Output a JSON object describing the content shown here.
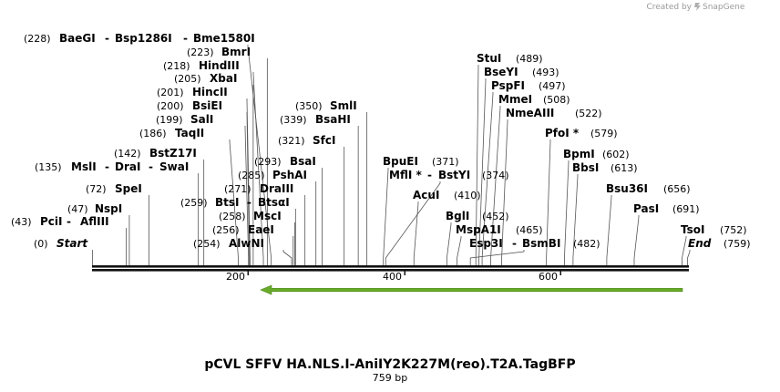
{
  "credit": {
    "prefix": "Created by",
    "brand": "SnapGene"
  },
  "plasmid": {
    "name": "pCVL SFFV HA.NLS.I-AniIY2K227M(reo).T2A.TagBFP",
    "length_label": "759 bp",
    "length": 759
  },
  "ruler": {
    "ticks": [
      "200",
      "400",
      "600"
    ]
  },
  "feature": {
    "name": "forward-arrow-feature",
    "color": "#6aaa2a",
    "start": 216,
    "end": 759,
    "direction": "reverse"
  },
  "sites": [
    {
      "id": "start",
      "pos_label": "(0)",
      "names": [
        "Start"
      ],
      "italic": true,
      "cut": 0
    },
    {
      "id": "pci-aflIII",
      "pos_label": "(43)",
      "names": [
        "PciI",
        "AflIII"
      ],
      "cut": 43
    },
    {
      "id": "nspi",
      "pos_label": "(47)",
      "names": [
        "NspI"
      ],
      "cut": 47
    },
    {
      "id": "spei",
      "pos_label": "(72)",
      "names": [
        "SpeI"
      ],
      "cut": 72
    },
    {
      "id": "msli-drai-swai",
      "pos_label": "(135)",
      "names": [
        "MslI",
        "DraI",
        "SwaI"
      ],
      "cut": 135
    },
    {
      "id": "bstz17i",
      "pos_label": "(142)",
      "names": [
        "BstZ17I"
      ],
      "cut": 142
    },
    {
      "id": "taqii",
      "pos_label": "(186)",
      "names": [
        "TaqII"
      ],
      "cut": 186
    },
    {
      "id": "sali",
      "pos_label": "(199)",
      "names": [
        "SalI"
      ],
      "cut": 199
    },
    {
      "id": "bsiei",
      "pos_label": "(200)",
      "names": [
        "BsiEI"
      ],
      "cut": 200
    },
    {
      "id": "hincii",
      "pos_label": "(201)",
      "names": [
        "HincII"
      ],
      "cut": 201
    },
    {
      "id": "xbai",
      "pos_label": "(205)",
      "names": [
        "XbaI"
      ],
      "cut": 205
    },
    {
      "id": "hindiii",
      "pos_label": "(218)",
      "names": [
        "HindIII"
      ],
      "cut": 218
    },
    {
      "id": "bmri",
      "pos_label": "(223)",
      "names": [
        "BmrI"
      ],
      "cut": 223
    },
    {
      "id": "baegi-group",
      "pos_label": "(228)",
      "names": [
        "BaeGI",
        "Bsp1286I",
        "Bme1580I"
      ],
      "cut": 228
    },
    {
      "id": "alwni",
      "pos_label": "(254)",
      "names": [
        "AlwNI"
      ],
      "cut": 254
    },
    {
      "id": "eaei",
      "pos_label": "(256)",
      "names": [
        "EaeI"
      ],
      "cut": 256
    },
    {
      "id": "msci",
      "pos_label": "(258)",
      "names": [
        "MscI"
      ],
      "cut": 258
    },
    {
      "id": "btsi-btsai",
      "pos_label": "(259)",
      "names": [
        "BtsI",
        "BtsαI"
      ],
      "cut": 259
    },
    {
      "id": "draiii",
      "pos_label": "(271)",
      "names": [
        "DraIII"
      ],
      "cut": 271
    },
    {
      "id": "pshai",
      "pos_label": "(285)",
      "names": [
        "PshAI"
      ],
      "cut": 285
    },
    {
      "id": "bsai",
      "pos_label": "(293)",
      "names": [
        "BsaI"
      ],
      "cut": 293
    },
    {
      "id": "sfci",
      "pos_label": "(321)",
      "names": [
        "SfcI"
      ],
      "cut": 321
    },
    {
      "id": "bsahi",
      "pos_label": "(339)",
      "names": [
        "BsaHI"
      ],
      "cut": 339
    },
    {
      "id": "smli",
      "pos_label": "(350)",
      "names": [
        "SmlI"
      ],
      "cut": 350
    },
    {
      "id": "bpuei",
      "pos_label": "(371)",
      "names": [
        "BpuEI"
      ],
      "cut": 371
    },
    {
      "id": "mfli-bstyi",
      "pos_label": "(374)",
      "names": [
        "MflI *",
        "BstYI"
      ],
      "cut": 374
    },
    {
      "id": "acui",
      "pos_label": "(410)",
      "names": [
        "AcuI"
      ],
      "cut": 410
    },
    {
      "id": "bgli",
      "pos_label": "(452)",
      "names": [
        "BglI"
      ],
      "cut": 452
    },
    {
      "id": "mspa1i",
      "pos_label": "(465)",
      "names": [
        "MspA1I"
      ],
      "cut": 465
    },
    {
      "id": "esp3i-bsmbi",
      "pos_label": "(482)",
      "names": [
        "Esp3I",
        "BsmBI"
      ],
      "cut": 482
    },
    {
      "id": "stui",
      "pos_label": "(489)",
      "names": [
        "StuI"
      ],
      "cut": 489
    },
    {
      "id": "bseyi",
      "pos_label": "(493)",
      "names": [
        "BseYI"
      ],
      "cut": 493
    },
    {
      "id": "pspfi",
      "pos_label": "(497)",
      "names": [
        "PspFI"
      ],
      "cut": 497
    },
    {
      "id": "mmei",
      "pos_label": "(508)",
      "names": [
        "MmeI"
      ],
      "cut": 508
    },
    {
      "id": "nmeaiii",
      "pos_label": "(522)",
      "names": [
        "NmeAIII"
      ],
      "cut": 522
    },
    {
      "id": "pfoi",
      "pos_label": "(579)",
      "names": [
        "PfoI *"
      ],
      "cut": 579
    },
    {
      "id": "bpmi",
      "pos_label": "(602)",
      "names": [
        "BpmI"
      ],
      "cut": 602
    },
    {
      "id": "bbsi",
      "pos_label": "(613)",
      "names": [
        "BbsI"
      ],
      "cut": 613
    },
    {
      "id": "bsu36i",
      "pos_label": "(656)",
      "names": [
        "Bsu36I"
      ],
      "cut": 656
    },
    {
      "id": "pasi",
      "pos_label": "(691)",
      "names": [
        "PasI"
      ],
      "cut": 691
    },
    {
      "id": "tsoi",
      "pos_label": "(752)",
      "names": [
        "TsoI"
      ],
      "cut": 752
    },
    {
      "id": "end",
      "pos_label": "(759)",
      "names": [
        "End"
      ],
      "italic": true,
      "cut": 759
    }
  ]
}
